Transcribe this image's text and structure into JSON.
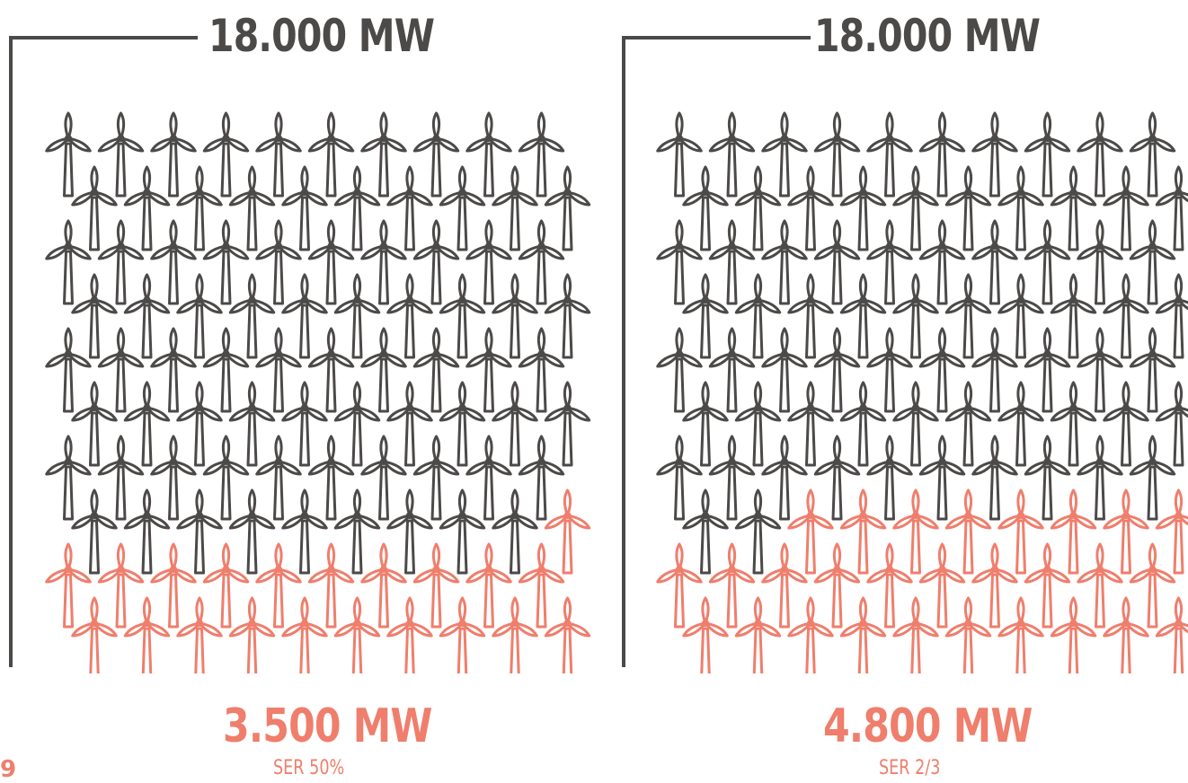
{
  "colors": {
    "installed": "#4c4a48",
    "highlight": "#ef7e6c"
  },
  "page_number": "9",
  "chart_data": [
    {
      "type": "pictogram",
      "icon": "wind-turbine-icon",
      "total_label": "18.000 MW",
      "value_label": "3.500 MW",
      "subtitle": "SER 50%",
      "rows": [
        10,
        10,
        10,
        10,
        10,
        10,
        10,
        10,
        10,
        10
      ],
      "highlighted_icons": 21
    },
    {
      "type": "pictogram",
      "icon": "wind-turbine-icon",
      "total_label": "18.000 MW",
      "value_label": "4.800 MW",
      "subtitle": "SER 2/3",
      "rows": [
        10,
        10,
        10,
        10,
        10,
        10,
        10,
        10,
        10,
        10
      ],
      "highlighted_icons": 28
    }
  ]
}
